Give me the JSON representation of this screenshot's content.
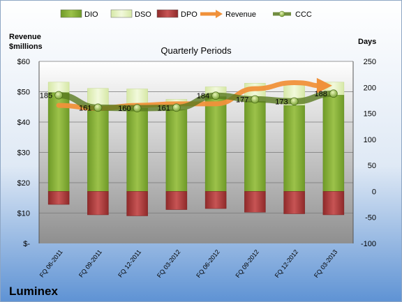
{
  "company": "Luminex",
  "chart_data": {
    "type": "bar",
    "title": "Quarterly Periods",
    "y_left_label": [
      "Revenue",
      "$millions"
    ],
    "y_right_label": "Days",
    "legend_position": "top",
    "legend": [
      {
        "name": "DIO",
        "kind": "bar",
        "color": "#8db33a"
      },
      {
        "name": "DSO",
        "kind": "bar",
        "color": "#e8f2c4"
      },
      {
        "name": "DPO",
        "kind": "bar",
        "color": "#b03a3a"
      },
      {
        "name": "Revenue",
        "kind": "arrow",
        "color": "#f0913a"
      },
      {
        "name": "CCC",
        "kind": "line",
        "color": "#5a7a20"
      }
    ],
    "categories": [
      "FQ 06-2011",
      "FQ 09-2011",
      "FQ 12-2011",
      "FQ 03-2012",
      "FQ 06-2012",
      "FQ 09-2012",
      "FQ 12-2012",
      "FQ 03-2013"
    ],
    "y_left": {
      "min": 0,
      "max": 60,
      "ticks": [
        0,
        10,
        20,
        30,
        40,
        50,
        60
      ],
      "tick_labels": [
        "$-",
        "$10",
        "$20",
        "$30",
        "$40",
        "$50",
        "$60"
      ]
    },
    "y_right": {
      "min": -100,
      "max": 250,
      "ticks": [
        -100,
        -50,
        0,
        50,
        100,
        150,
        200,
        250
      ],
      "tick_labels": [
        "-100",
        "-50",
        "0",
        "50",
        "100",
        "150",
        "200",
        "250"
      ]
    },
    "grid": true,
    "series": [
      {
        "name": "DIO",
        "axis": "right",
        "values": [
          190,
          163,
          160,
          157,
          182,
          173,
          165,
          185
        ]
      },
      {
        "name": "DSO",
        "axis": "right",
        "values": [
          20,
          35,
          37,
          20,
          19,
          35,
          40,
          25
        ]
      },
      {
        "name": "DPO",
        "axis": "right",
        "values": [
          -25,
          -45,
          -47,
          -35,
          -33,
          -40,
          -43,
          -45
        ]
      },
      {
        "name": "Revenue",
        "axis": "left",
        "values": [
          45.5,
          44.5,
          45.5,
          46,
          46,
          51,
          53,
          52
        ]
      },
      {
        "name": "CCC",
        "axis": "right",
        "values": [
          185,
          161,
          160,
          161,
          184,
          177,
          173,
          188
        ],
        "data_labels": [
          "185",
          "161",
          "160",
          "161",
          "184",
          "177",
          "173",
          "188"
        ]
      }
    ]
  }
}
